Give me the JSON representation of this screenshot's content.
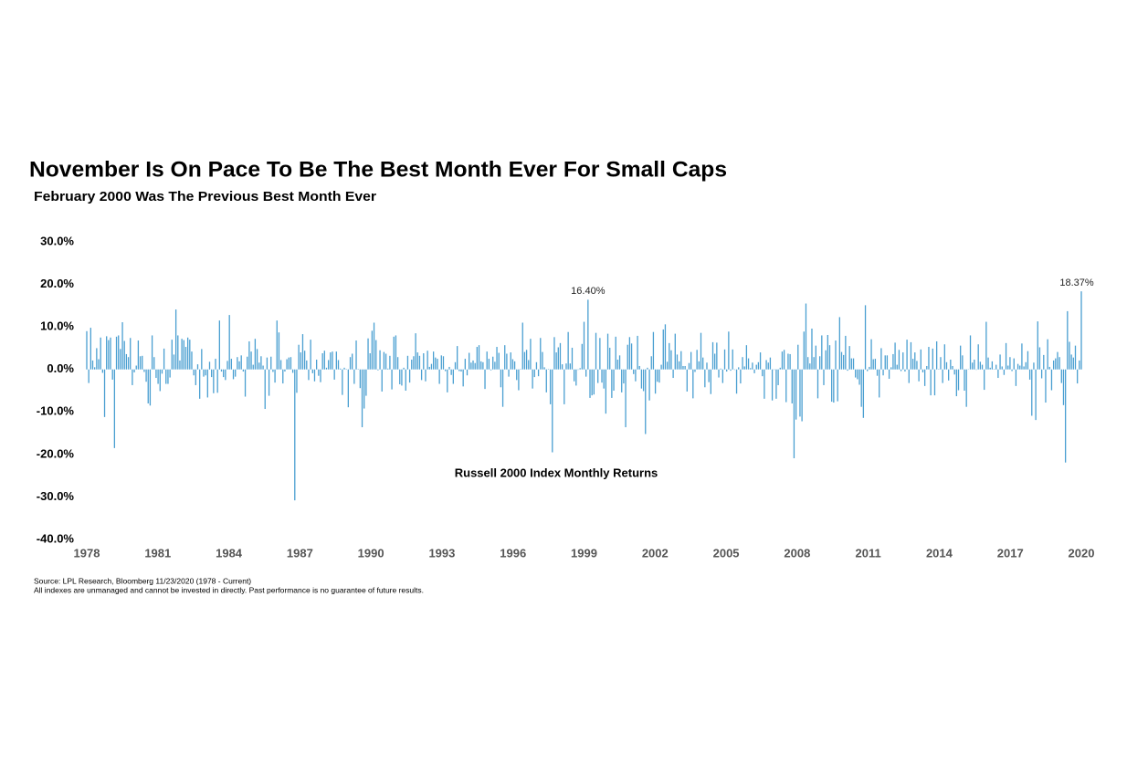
{
  "chart_data": {
    "type": "bar",
    "title": "November Is On Pace To Be The Best Month Ever For Small Caps",
    "subtitle": "February 2000 Was The Previous Best Month Ever",
    "series_label": "Russell 2000 Index Monthly Returns",
    "notes": [
      "Source: LPL Research, Bloomberg 11/23/2020 (1978 - Current)",
      "All indexes are unmanaged and cannot be invested in directly. Past performance is no guarantee of future results."
    ],
    "color": "#4a9fd1",
    "grid": false,
    "ylim": [
      -40,
      30
    ],
    "yticks": [
      {
        "value": 30,
        "label": "30.0%"
      },
      {
        "value": 20,
        "label": "20.0%"
      },
      {
        "value": 10,
        "label": "10.0%"
      },
      {
        "value": 0,
        "label": "0.0%"
      },
      {
        "value": -10,
        "label": "-10.0%"
      },
      {
        "value": -20,
        "label": "-20.0%"
      },
      {
        "value": -30,
        "label": "-30.0%"
      },
      {
        "value": -40,
        "label": "-40.0%"
      }
    ],
    "xlim": [
      1978,
      2020
    ],
    "xticks": [
      1978,
      1981,
      1984,
      1987,
      1990,
      1993,
      1996,
      1999,
      2002,
      2005,
      2008,
      2011,
      2014,
      2017,
      2020
    ],
    "values": [
      9.0,
      -3.2,
      9.8,
      2.1,
      0.5,
      5.0,
      2.4,
      7.5,
      -0.8,
      -11.2,
      7.8,
      6.9,
      7.5,
      -2.4,
      -18.5,
      7.7,
      8.0,
      4.8,
      11.1,
      6.7,
      3.6,
      2.9,
      7.4,
      -3.7,
      -0.7,
      0.9,
      6.8,
      3.1,
      3.2,
      -0.6,
      -2.9,
      -8.0,
      -8.5,
      8.0,
      2.9,
      -2.0,
      -3.4,
      -5.1,
      -1.0,
      4.9,
      -3.4,
      -3.4,
      -1.9,
      7.0,
      3.5,
      14.1,
      8.0,
      2.1,
      7.2,
      6.9,
      5.3,
      7.5,
      7.0,
      4.2,
      -1.4,
      -3.7,
      1.2,
      -6.9,
      4.8,
      -1.7,
      -1.4,
      -6.6,
      1.8,
      -1.8,
      -5.6,
      2.5,
      -5.5,
      11.5,
      -0.5,
      -1.8,
      -2.5,
      2.0,
      12.8,
      2.5,
      -2.3,
      -1.7,
      2.9,
      1.9,
      3.3,
      -0.5,
      -6.4,
      3.0,
      6.6,
      4.2,
      1.1,
      7.2,
      4.8,
      1.6,
      3.1,
      0.9,
      -9.3,
      2.8,
      -6.2,
      3.0,
      -0.6,
      -3.1,
      11.5,
      8.7,
      2.2,
      -3.3,
      -0.5,
      2.4,
      2.8,
      2.9,
      -0.8,
      -30.8,
      -5.5,
      5.8,
      4.0,
      8.3,
      4.4,
      2.1,
      -2.5,
      7.0,
      -0.9,
      -2.8,
      2.3,
      -1.5,
      -3.0,
      3.8,
      4.4,
      0.4,
      2.2,
      4.0,
      4.2,
      -2.4,
      4.2,
      2.2,
      0.2,
      -6.0,
      0.4,
      0.1,
      -8.9,
      2.9,
      3.7,
      -3.4,
      6.8,
      0.1,
      -4.4,
      -13.6,
      -9.2,
      -6.2,
      7.3,
      3.8,
      9.1,
      11.0,
      6.9,
      -0.2,
      4.5,
      -5.2,
      4.1,
      3.7,
      0.2,
      3.2,
      -4.7,
      7.7,
      8.0,
      2.9,
      -3.5,
      -3.8,
      0.4,
      -5.0,
      3.2,
      -3.1,
      2.3,
      3.1,
      8.5,
      4.0,
      3.2,
      -2.5,
      3.8,
      -2.8,
      4.4,
      0.6,
      1.3,
      4.2,
      2.8,
      2.5,
      -3.4,
      3.3,
      3.1,
      -0.4,
      -5.4,
      0.6,
      -1.3,
      -3.4,
      1.7,
      5.5,
      -0.4,
      -0.5,
      -4.0,
      2.5,
      -1.4,
      3.9,
      1.6,
      2.1,
      1.5,
      5.3,
      5.7,
      1.9,
      1.7,
      -4.6,
      4.2,
      2.5,
      -0.2,
      3.0,
      1.8,
      5.3,
      3.9,
      -4.2,
      -8.8,
      5.7,
      3.7,
      -1.7,
      4.0,
      2.4,
      1.9,
      -2.5,
      -4.9,
      0.1,
      11.0,
      4.1,
      4.6,
      2.2,
      7.2,
      -4.5,
      -1.8,
      1.7,
      -1.6,
      7.4,
      4.1,
      0.5,
      -5.4,
      0.1,
      -8.2,
      -19.5,
      7.6,
      4.0,
      5.2,
      6.2,
      1.2,
      -8.2,
      1.4,
      8.8,
      1.4,
      5.1,
      -2.8,
      -3.8,
      -0.1,
      0.3,
      6.0,
      11.2,
      -1.7,
      16.4,
      -6.7,
      -6.1,
      -5.9,
      8.6,
      -3.2,
      7.4,
      -3.1,
      -4.5,
      -10.4,
      8.4,
      5.1,
      -6.7,
      -5.0,
      7.7,
      2.3,
      3.3,
      -5.4,
      -3.3,
      -13.6,
      5.8,
      7.6,
      6.1,
      -1.1,
      -2.8,
      7.9,
      0.8,
      -4.5,
      -5.1,
      -15.2,
      0.4,
      -7.3,
      3.1,
      8.8,
      -5.7,
      -2.9,
      -3.1,
      1.1,
      9.4,
      10.6,
      1.8,
      6.2,
      4.5,
      -2.0,
      8.4,
      3.5,
      1.9,
      4.3,
      0.8,
      0.8,
      -5.2,
      1.5,
      4.1,
      -6.8,
      -0.6,
      4.6,
      1.9,
      8.6,
      2.8,
      -4.2,
      1.6,
      -3.0,
      -5.8,
      6.4,
      3.7,
      6.3,
      -1.9,
      0.2,
      -3.2,
      4.7,
      -0.5,
      8.9,
      -0.3,
      4.7,
      -0.1,
      -5.7,
      0.5,
      -3.3,
      2.9,
      0.7,
      5.7,
      2.6,
      0.3,
      1.6,
      -0.9,
      1.1,
      1.7,
      4.0,
      -1.6,
      -6.9,
      2.2,
      1.6,
      2.8,
      -7.3,
      -0.1,
      -6.9,
      -3.7,
      0.4,
      4.2,
      4.6,
      -7.7,
      3.7,
      3.6,
      -8.0,
      -20.9,
      -11.8,
      5.8,
      -11.1,
      -12.2,
      8.9,
      15.5,
      2.9,
      1.4,
      9.6,
      2.9,
      5.6,
      -6.8,
      3.1,
      8.0,
      -3.7,
      4.5,
      8.1,
      5.7,
      -7.6,
      -7.8,
      6.8,
      -7.5,
      12.3,
      4.1,
      3.4,
      7.9,
      -0.3,
      5.5,
      2.6,
      2.6,
      -1.9,
      -2.3,
      -3.6,
      -8.8,
      -11.4,
      15.1,
      -0.4,
      0.6,
      7.1,
      2.4,
      2.5,
      -1.5,
      -6.6,
      5.0,
      -1.4,
      3.3,
      3.3,
      -2.2,
      0.5,
      3.6,
      6.3,
      1.1,
      4.6,
      -0.4,
      4.0,
      -0.5,
      7.0,
      -3.2,
      6.4,
      2.5,
      4.0,
      2.0,
      -2.8,
      4.7,
      -0.7,
      -3.9,
      0.8,
      5.3,
      -6.1,
      4.9,
      -6.1,
      6.6,
      0.1,
      2.9,
      -3.2,
      5.9,
      1.7,
      -2.6,
      2.3,
      0.8,
      -1.2,
      -6.3,
      -4.9,
      5.6,
      3.3,
      -5.0,
      -8.8,
      0.0,
      8.0,
      1.6,
      2.3,
      -0.1,
      5.9,
      1.8,
      1.1,
      -4.8,
      11.2,
      2.8,
      0.4,
      1.9,
      0.1,
      1.1,
      -2.0,
      3.5,
      0.7,
      -1.3,
      6.2,
      0.9,
      2.9,
      -0.4,
      2.6,
      -3.9,
      1.3,
      0.9,
      6.1,
      0.7,
      1.7,
      4.3,
      -2.4,
      -10.9,
      1.6,
      -11.9,
      11.3,
      5.2,
      -2.1,
      3.4,
      -7.8,
      7.1,
      0.6,
      -4.9,
      2.1,
      2.6,
      4.1,
      2.9,
      -3.2,
      -8.4,
      -21.9,
      13.7,
      6.5,
      3.5,
      2.8,
      5.6,
      -3.3,
      2.1,
      18.37
    ],
    "value_labels": [
      null,
      null,
      null,
      null,
      null,
      null,
      null,
      null,
      null,
      null,
      null,
      null,
      null,
      null,
      null,
      null,
      null,
      null,
      null,
      null,
      null,
      null,
      null,
      null,
      null,
      null,
      null,
      null,
      null,
      null,
      null,
      null,
      null,
      null,
      null,
      null,
      null,
      null,
      null,
      null,
      null,
      null,
      null,
      null,
      null,
      null,
      null,
      null,
      null,
      null,
      null,
      null,
      null,
      null,
      null,
      null,
      null,
      null,
      null,
      null,
      null,
      null,
      null,
      null,
      null,
      null,
      null,
      null,
      null,
      null,
      null,
      null,
      null,
      null,
      null,
      null,
      null,
      null,
      null,
      null,
      null,
      null,
      null,
      null,
      null,
      null,
      null,
      null,
      null,
      null,
      null,
      null,
      null,
      null,
      null,
      null,
      null,
      null,
      null,
      null,
      null,
      null,
      null,
      null,
      null,
      null,
      null,
      null,
      null,
      null,
      null,
      null,
      null,
      null,
      null,
      null,
      null,
      null,
      null,
      null,
      null,
      null,
      null,
      null,
      null,
      null,
      null,
      null,
      null,
      null,
      null,
      null,
      null,
      null,
      null,
      null,
      null,
      null,
      null,
      null,
      null,
      null,
      null,
      null,
      null,
      null,
      null,
      null,
      null,
      null,
      null,
      null,
      null,
      null,
      null,
      null,
      null,
      null,
      null,
      null,
      null,
      null,
      null,
      null,
      null,
      null,
      null,
      null,
      null,
      null,
      null,
      null,
      null,
      null,
      null,
      null,
      null,
      null,
      null,
      null,
      null,
      null,
      null,
      null,
      null,
      null,
      null,
      null,
      null,
      null,
      null,
      null,
      null,
      null,
      null,
      null,
      null,
      null,
      null,
      null,
      null,
      null,
      null,
      null,
      null,
      null,
      null,
      null,
      null,
      null,
      null,
      null,
      null,
      null,
      null,
      null,
      null,
      null,
      null,
      null,
      null,
      null,
      null,
      null,
      null,
      null,
      null,
      null,
      null,
      null,
      null,
      null,
      null,
      null,
      null,
      null,
      null,
      null,
      null,
      null,
      null,
      null,
      null,
      null,
      null,
      null,
      null,
      null,
      null,
      null,
      null,
      null,
      null,
      "16.40%",
      null,
      null,
      null,
      null,
      null,
      null,
      null,
      null,
      null,
      null,
      null,
      null,
      null,
      null,
      null,
      null,
      null,
      null,
      null,
      null,
      null,
      null,
      null,
      null,
      null,
      null,
      null,
      null,
      null,
      null,
      null,
      null,
      null,
      null,
      null,
      null,
      null,
      null,
      null,
      null,
      null,
      null,
      null,
      null,
      null,
      null,
      null,
      null,
      null,
      null,
      null,
      null,
      null,
      null,
      null,
      null,
      null,
      null,
      null,
      null,
      null,
      null,
      null,
      null,
      null,
      null,
      null,
      null,
      null,
      null,
      null,
      null,
      null,
      null,
      null,
      null,
      null,
      null,
      null,
      null,
      null,
      null,
      null,
      null,
      null,
      null,
      null,
      null,
      null,
      null,
      null,
      null,
      null,
      null,
      null,
      null,
      null,
      null,
      null,
      null,
      null,
      null,
      null,
      null,
      null,
      null,
      null,
      null,
      null,
      null,
      null,
      null,
      null,
      null,
      null,
      null,
      null,
      null,
      null,
      null,
      null,
      null,
      null,
      null,
      null,
      null,
      null,
      null,
      null,
      null,
      null,
      null,
      null,
      null,
      null,
      null,
      null,
      null,
      null,
      null,
      null,
      null,
      null,
      null,
      null,
      null,
      null,
      null,
      null,
      null,
      null,
      null,
      null,
      null,
      null,
      null,
      null,
      null,
      null,
      null,
      null,
      null,
      null,
      null,
      null,
      null,
      null,
      null,
      null,
      null,
      null,
      null,
      null,
      null,
      null,
      null,
      null,
      null,
      null,
      null,
      null,
      null,
      null,
      null,
      null,
      null,
      null,
      null,
      null,
      null,
      null,
      null,
      null,
      null,
      null,
      null,
      null,
      null,
      null,
      null,
      null,
      null,
      null,
      null,
      null,
      null,
      null,
      null,
      null,
      null,
      null,
      null,
      null,
      null,
      null,
      null,
      null,
      null,
      null,
      null,
      null,
      null,
      null,
      null,
      null,
      null,
      null,
      null,
      null,
      null,
      null,
      null,
      null,
      null,
      null,
      null,
      null,
      null,
      null,
      null,
      null,
      null,
      null,
      null,
      null,
      null,
      null,
      null,
      "18.37%"
    ]
  }
}
